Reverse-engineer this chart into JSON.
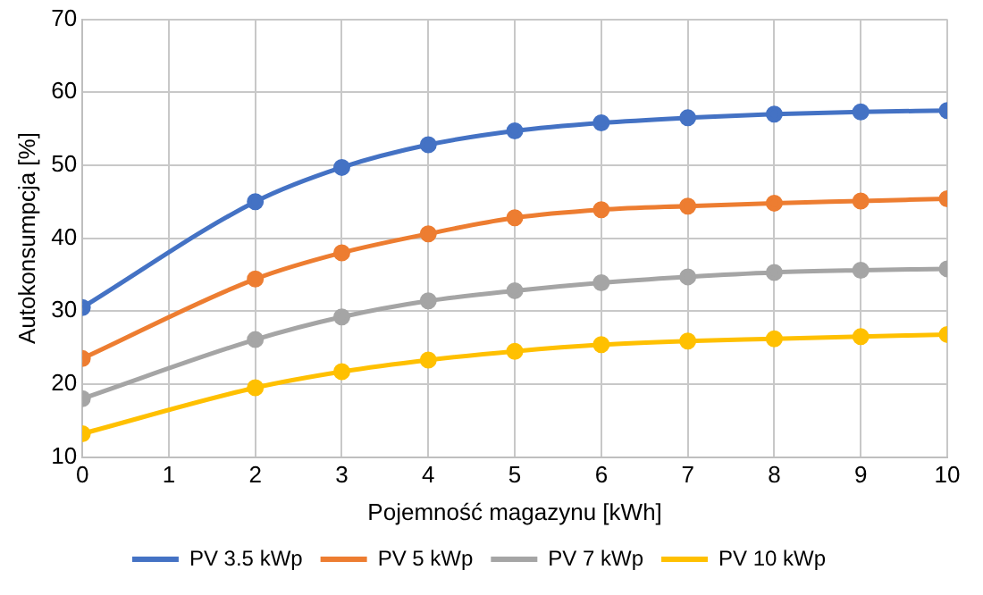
{
  "chart_data": {
    "type": "line",
    "xlabel": "Pojemność magazynu [kWh]",
    "ylabel": "Autokonsumpcja [%]",
    "x": [
      0,
      2,
      3,
      4,
      5,
      6,
      7,
      8,
      9,
      10
    ],
    "series": [
      {
        "name": "PV 3.5 kWp",
        "color": "#4472c4",
        "values": [
          30.5,
          45,
          49.7,
          52.8,
          54.7,
          55.8,
          56.5,
          57,
          57.3,
          57.5
        ]
      },
      {
        "name": "PV 5 kWp",
        "color": "#ed7d31",
        "values": [
          23.5,
          34.4,
          38,
          40.6,
          42.8,
          43.9,
          44.4,
          44.8,
          45.1,
          45.4
        ]
      },
      {
        "name": "PV 7 kWp",
        "color": "#a5a5a5",
        "values": [
          18,
          26.1,
          29.2,
          31.4,
          32.8,
          33.9,
          34.7,
          35.3,
          35.6,
          35.8
        ]
      },
      {
        "name": "PV 10 kWp",
        "color": "#ffc000",
        "values": [
          13.2,
          19.5,
          21.7,
          23.3,
          24.5,
          25.4,
          25.9,
          26.2,
          26.5,
          26.8
        ]
      }
    ],
    "xlim": [
      0,
      10
    ],
    "xticks": [
      0,
      1,
      2,
      3,
      4,
      5,
      6,
      7,
      8,
      9,
      10
    ],
    "ylim": [
      10,
      70
    ],
    "yticks": [
      10,
      20,
      30,
      40,
      50,
      60,
      70
    ],
    "grid": true,
    "legend": "bottom",
    "marker": "circle",
    "line_style": "solid"
  }
}
